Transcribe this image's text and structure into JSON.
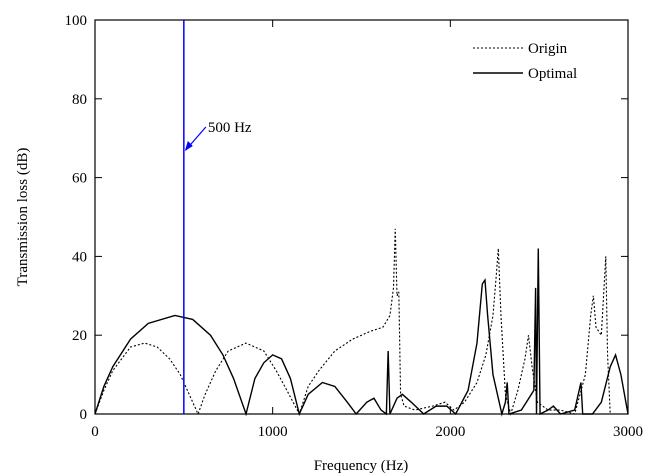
{
  "chart_data": {
    "type": "line",
    "xlabel": "Frequency (Hz)",
    "ylabel": "Transmission loss (dB)",
    "xlim": [
      0,
      3000
    ],
    "xticks": [
      0,
      1000,
      2000,
      3000
    ],
    "ylim": [
      0,
      100
    ],
    "yticks": [
      0,
      20,
      40,
      60,
      80,
      100
    ],
    "legend": "upper right",
    "vline": {
      "x": 500,
      "label": "500 Hz",
      "color": "#0000ff"
    },
    "series": [
      {
        "name": "Origin",
        "color": "#000000",
        "style": "dotted",
        "x": [
          0,
          50,
          100,
          150,
          200,
          280,
          350,
          420,
          480,
          530,
          580,
          620,
          680,
          750,
          850,
          950,
          1020,
          1080,
          1150,
          1200,
          1260,
          1350,
          1450,
          1550,
          1620,
          1660,
          1680,
          1690,
          1700,
          1710,
          1720,
          1740,
          1800,
          1900,
          1970,
          2020,
          2080,
          2150,
          2200,
          2240,
          2260,
          2270,
          2285,
          2310,
          2340,
          2380,
          2420,
          2440,
          2460,
          2490,
          2550,
          2620,
          2700,
          2760,
          2790,
          2805,
          2820,
          2850,
          2865,
          2875,
          2885,
          2900,
          3000
        ],
        "values": [
          0,
          6,
          11,
          14,
          17,
          18,
          17,
          14,
          10,
          5,
          0,
          5,
          11,
          16,
          18,
          16,
          11,
          6,
          0,
          7,
          11,
          16,
          19,
          21,
          22,
          25,
          32,
          47,
          30,
          31,
          5,
          2,
          1,
          2,
          3,
          1,
          3,
          8,
          15,
          25,
          36,
          42,
          25,
          5,
          0,
          6,
          14,
          20,
          12,
          3,
          1,
          1,
          0,
          10,
          25,
          30,
          22,
          20,
          32,
          40,
          15,
          0,
          0
        ]
      },
      {
        "name": "Optimal",
        "color": "#000000",
        "style": "solid",
        "x": [
          0,
          50,
          100,
          200,
          300,
          450,
          550,
          650,
          720,
          780,
          850,
          900,
          950,
          1000,
          1050,
          1100,
          1150,
          1200,
          1280,
          1350,
          1420,
          1470,
          1530,
          1570,
          1610,
          1640,
          1650,
          1660,
          1700,
          1730,
          1780,
          1850,
          1920,
          1980,
          2030,
          2100,
          2150,
          2180,
          2195,
          2210,
          2240,
          2290,
          2310,
          2320,
          2330,
          2400,
          2470,
          2480,
          2485,
          2495,
          2505,
          2550,
          2580,
          2620,
          2700,
          2735,
          2745,
          2800,
          2850,
          2900,
          2930,
          2960,
          3000
        ],
        "values": [
          0,
          7,
          12,
          19,
          23,
          25,
          24,
          20,
          15,
          9,
          0,
          9,
          13,
          15,
          14,
          9,
          0,
          5,
          8,
          7,
          3,
          0,
          3,
          4,
          1,
          0,
          16,
          0,
          4,
          5,
          3,
          0,
          2,
          2,
          0,
          6,
          18,
          33,
          34,
          25,
          10,
          0,
          3,
          8,
          0,
          1,
          6,
          32,
          0,
          42,
          0,
          1,
          2,
          0,
          1,
          8,
          0,
          0,
          3,
          12,
          15,
          10,
          0
        ]
      }
    ]
  }
}
